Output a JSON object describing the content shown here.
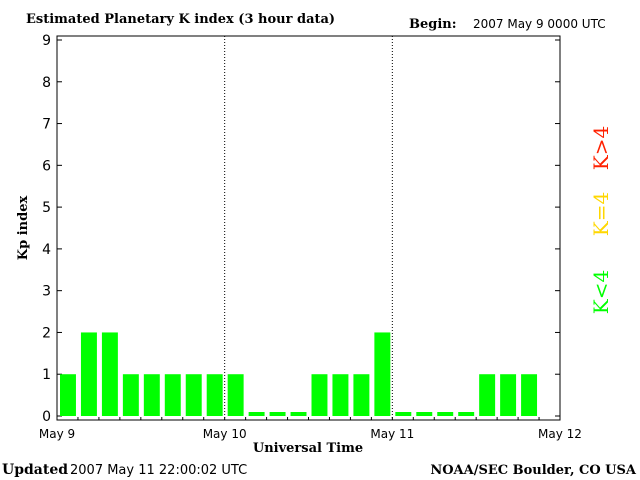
{
  "chart_data": {
    "type": "bar",
    "title": "Estimated Planetary K index (3 hour data)",
    "begin_label": "Begin:",
    "begin_value": "2007 May 9 0000 UTC",
    "xlabel": "Universal Time",
    "ylabel": "Kp index",
    "ylim": [
      0,
      9
    ],
    "yticks": [
      "0",
      "1",
      "2",
      "3",
      "4",
      "5",
      "6",
      "7",
      "8",
      "9"
    ],
    "x_ticks": [
      "May 9",
      "May 10",
      "May 11",
      "May 12"
    ],
    "grid": false,
    "day_dividers": [
      1,
      2
    ],
    "bar_count_per_day": 8,
    "days": 3,
    "values": [
      1,
      2,
      2,
      1,
      1,
      1,
      1,
      1,
      1,
      0,
      0,
      0,
      1,
      1,
      1,
      2,
      0,
      0,
      0,
      0,
      1,
      1,
      1
    ],
    "legend": [
      {
        "label": "K<4",
        "color": "#00ff00"
      },
      {
        "label": "K=4",
        "color": "#ffd700"
      },
      {
        "label": "K>4",
        "color": "#ff2000"
      }
    ],
    "bar_color_low": "#00ff00",
    "bar_color_mid": "#ffd700",
    "bar_color_high": "#ff2000"
  },
  "footer": {
    "updated_label": "Updated",
    "updated_value": "2007 May 11 22:00:02 UTC",
    "source": "NOAA/SEC Boulder, CO USA"
  }
}
